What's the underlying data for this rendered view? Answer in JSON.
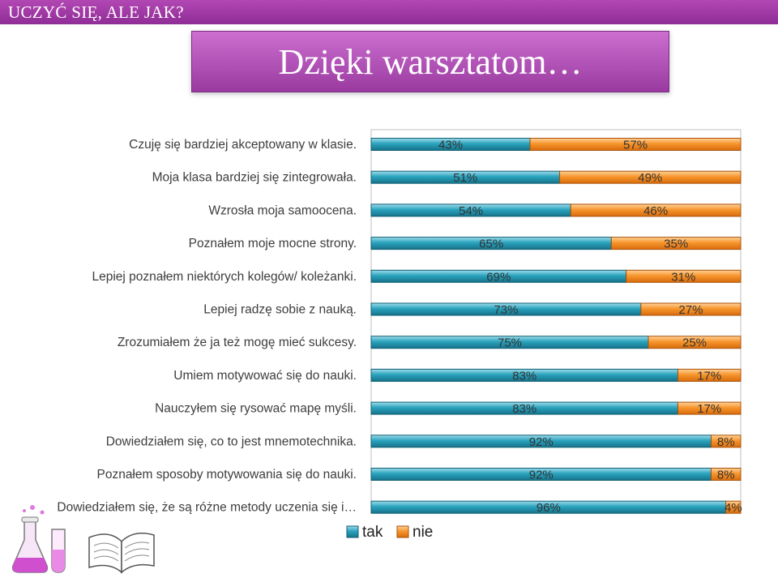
{
  "header": {
    "section": "UCZYĆ SIĘ, ALE JAK?",
    "title": "Dzięki warsztatom…"
  },
  "colors": {
    "tak": "#1f8fa6",
    "nie": "#f28a1e",
    "accent": "#9a3aa0"
  },
  "chart_data": {
    "type": "bar",
    "orientation": "horizontal",
    "stacked": "percent",
    "categories": [
      "Czuję się bardziej akceptowany w klasie.",
      "Moja klasa bardziej się zintegrowała.",
      "Wzrosła moja samoocena.",
      "Poznałem moje mocne strony.",
      "Lepiej poznałem niektórych kolegów/ koleżanki.",
      "Lepiej radzę sobie z nauką.",
      "Zrozumiałem że ja też mogę mieć sukcesy.",
      "Umiem motywować się do nauki.",
      "Nauczyłem się rysować mapę myśli.",
      "Dowiedziałem się, co to jest mnemotechnika.",
      "Poznałem sposoby motywowania się do nauki.",
      "Dowiedziałem się, że są różne metody uczenia się i…"
    ],
    "series": [
      {
        "name": "tak",
        "values": [
          43,
          51,
          54,
          65,
          69,
          73,
          75,
          83,
          83,
          92,
          92,
          96
        ],
        "labels": [
          "43%",
          "51%",
          "54%",
          "65%",
          "69%",
          "73%",
          "75%",
          "83%",
          "83%",
          "92%",
          "92%",
          "96%"
        ]
      },
      {
        "name": "nie",
        "values": [
          57,
          49,
          46,
          35,
          31,
          27,
          25,
          17,
          17,
          8,
          8,
          4
        ],
        "labels": [
          "57%",
          "49%",
          "46%",
          "35%",
          "31%",
          "27%",
          "25%",
          "17%",
          "17%",
          "8%",
          "8%",
          "4%"
        ]
      }
    ],
    "xlim": [
      0,
      100
    ],
    "legend": "bottom",
    "grid": false
  }
}
